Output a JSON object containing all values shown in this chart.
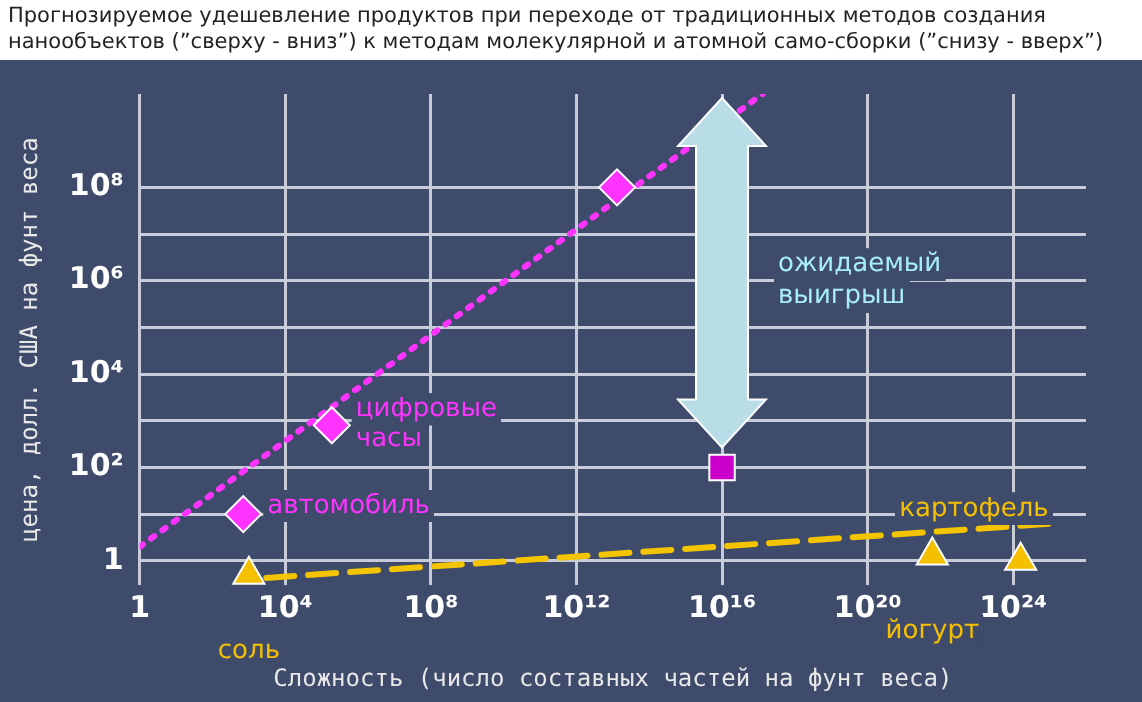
{
  "chart_data": {
    "type": "scatter",
    "title": "Прогнозируемое удешевление продуктов при переходе от традиционных методов создания нанообъектов (”сверху - вниз”) к методам молекулярной и атомной само-сборки (”снизу - вверх”)",
    "xlabel": "Сложность (число составных частей на фунт веса)",
    "ylabel": "цена, долл. США на фунт веса",
    "log": "xy",
    "grid": true,
    "legend": false,
    "xlim": [
      1,
      1e+26
    ],
    "xticks": [
      1,
      {
        "value": 10000.0,
        "label": "10⁴"
      },
      {
        "value": 100000000.0,
        "label": "10⁸"
      },
      {
        "value": 1000000000000.0,
        "label": "10¹²"
      },
      {
        "value": 1e+16,
        "label": "10¹⁶"
      },
      {
        "value": 1e+20,
        "label": "10²⁰"
      },
      {
        "value": 1e+24,
        "label": "10²⁴"
      }
    ],
    "ylim": [
      0.3,
      10000000000.0
    ],
    "yticks": [
      1,
      {
        "value": 10,
        "label": null
      },
      {
        "value": 100,
        "label": "10²"
      },
      {
        "value": 1000,
        "label": null
      },
      {
        "value": 10000,
        "label": "10⁴"
      },
      {
        "value": 100000,
        "label": null
      },
      {
        "value": 1000000,
        "label": "10⁶"
      },
      {
        "value": 10000000,
        "label": null
      },
      {
        "value": 100000000,
        "label": "10⁸"
      }
    ],
    "series": [
      {
        "marker": "diamond",
        "color": "#ff33ff",
        "x": [
          700,
          190000,
          13000000000000.0
        ],
        "values": [
          10,
          800,
          100000000.0
        ]
      },
      {
        "marker": "square",
        "color": "#cc00cc",
        "x": [
          1e+16
        ],
        "values": [
          100
        ]
      },
      {
        "marker": "triangle",
        "color": "#f5c000",
        "x": [
          1000,
          6e+21,
          1.6e+24
        ],
        "values": [
          0.5,
          1.3,
          1
        ]
      },
      {
        "type": "line",
        "line_style": "dotted",
        "color": "#ff33ff",
        "x": [
          1,
          1.3e+17
        ],
        "values": [
          2,
          10000000000.0
        ]
      },
      {
        "type": "line",
        "line_style": "dashed",
        "color": "#f5c400",
        "x": [
          3000,
          1.3e+25
        ],
        "values": [
          0.43,
          6.3
        ]
      }
    ],
    "annotations": [
      {
        "text": "автомобиль",
        "x": 700,
        "y": 10
      },
      {
        "text": "цифровые часы",
        "x": 190000,
        "y": 800
      },
      {
        "text": "соль",
        "x": 1000,
        "y": 0.5
      },
      {
        "text": "йогурт",
        "x": 6e+21,
        "y": 1.3
      },
      {
        "text": "картофель",
        "x": 1.6e+24,
        "y": 1
      },
      "ожидаемый выигрыш"
    ]
  }
}
